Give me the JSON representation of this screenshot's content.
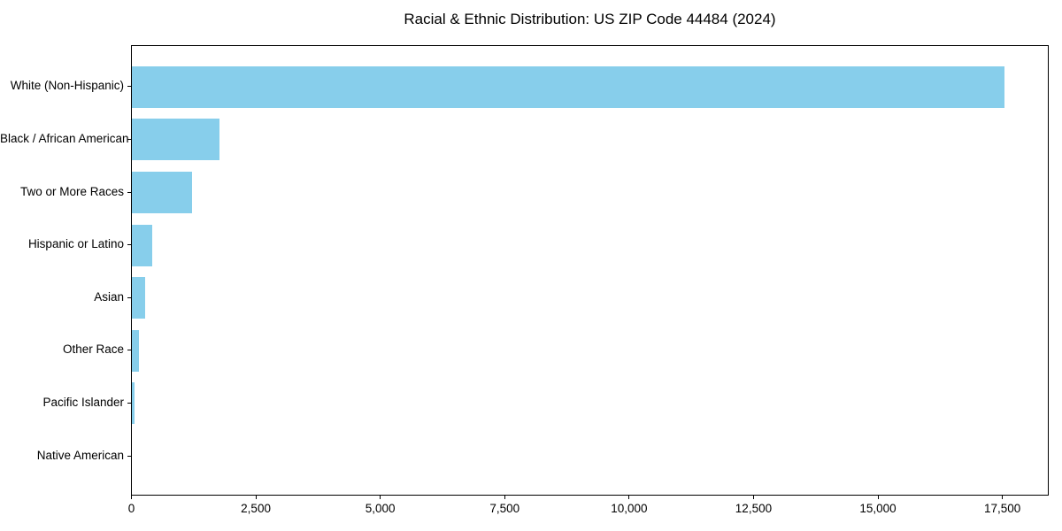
{
  "chart_data": {
    "type": "bar",
    "orientation": "horizontal",
    "title": "Racial & Ethnic Distribution: US ZIP Code 44484 (2024)",
    "categories": [
      "White (Non-Hispanic)",
      "Black / African American",
      "Two or More Races",
      "Hispanic or Latino",
      "Asian",
      "Other Race",
      "Pacific Islander",
      "Native American"
    ],
    "values": [
      17570,
      1760,
      1210,
      410,
      260,
      140,
      55,
      0
    ],
    "xlabel": "",
    "ylabel": "",
    "xlim": [
      0,
      18440
    ],
    "x_ticks": [
      0,
      2500,
      5000,
      7500,
      10000,
      12500,
      15000,
      17500
    ],
    "x_tick_labels": [
      "0",
      "2,500",
      "5,000",
      "7,500",
      "10,000",
      "12,500",
      "15,000",
      "17,500"
    ],
    "bar_color": "#87CEEB",
    "axis_color": "#000000",
    "text_color": "#000000",
    "grid": false,
    "legend": null
  }
}
